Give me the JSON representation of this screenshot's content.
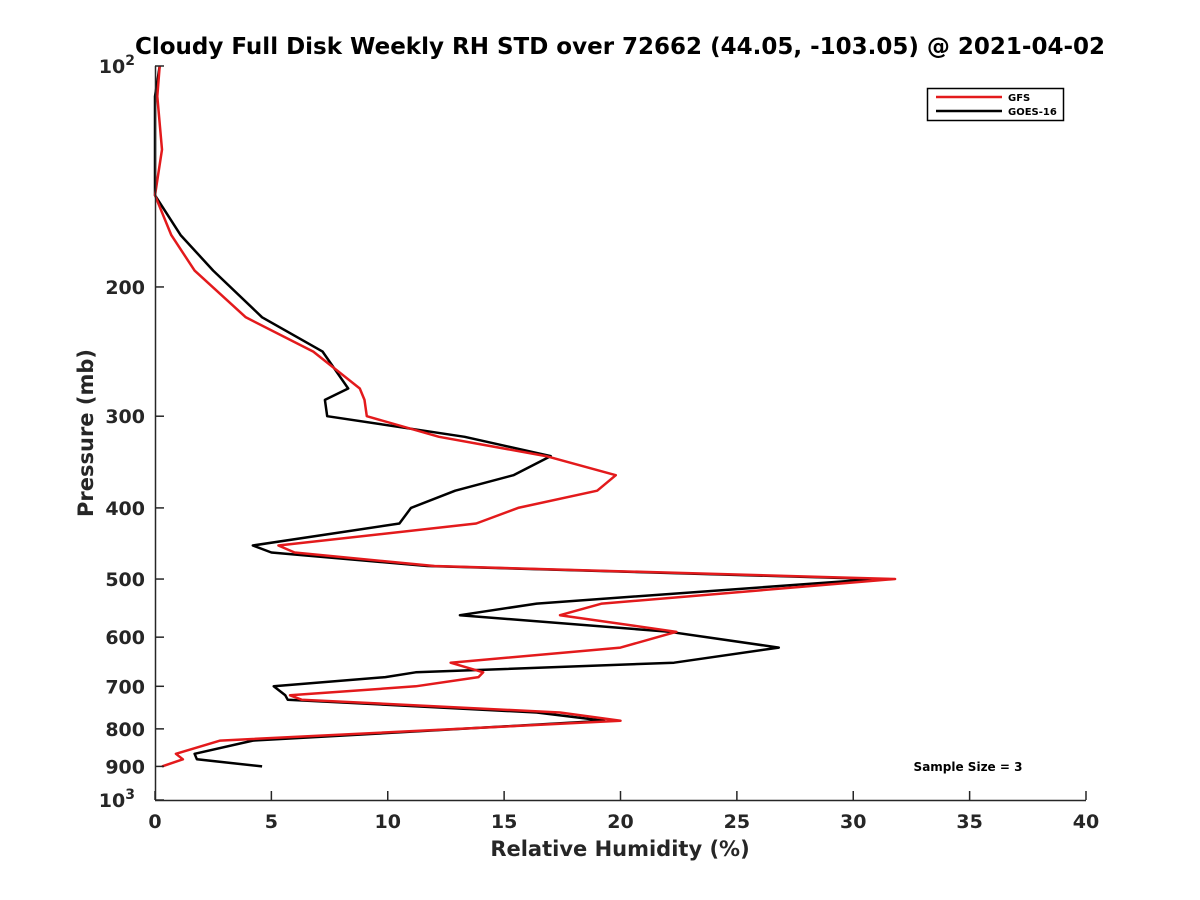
{
  "chart_data": {
    "type": "line",
    "title": "Cloudy Full Disk Weekly RH STD over 72662 (44.05, -103.05) @ 2021-04-02",
    "xlabel": "Relative Humidity (%)",
    "ylabel": "Pressure (mb)",
    "xlim": [
      0,
      40
    ],
    "ylim": [
      100,
      1000
    ],
    "y_scale": "log",
    "y_reversed": true,
    "x_ticks": [
      "0",
      "5",
      "10",
      "15",
      "20",
      "25",
      "30",
      "35",
      "40"
    ],
    "y_ticks": [
      {
        "value": 100,
        "base": "10",
        "exp": "2"
      },
      {
        "value": 200,
        "label": "200"
      },
      {
        "value": 300,
        "label": "300"
      },
      {
        "value": 400,
        "label": "400"
      },
      {
        "value": 500,
        "label": "500"
      },
      {
        "value": 600,
        "label": "600"
      },
      {
        "value": 700,
        "label": "700"
      },
      {
        "value": 800,
        "label": "800"
      },
      {
        "value": 900,
        "label": "900"
      },
      {
        "value": 1000,
        "base": "10",
        "exp": "3"
      }
    ],
    "grid": false,
    "legend_position": "top-right",
    "annotation": "Sample Size = 3",
    "series": [
      {
        "name": "GFS",
        "color": "#e31a1c",
        "x": [
          0.2,
          0.1,
          0.3,
          0.0,
          0.7,
          1.7,
          3.9,
          6.8,
          8.8,
          9.0,
          9.1,
          12.2,
          16.8,
          19.8,
          19.0,
          15.6,
          13.8,
          5.3,
          6.0,
          12.0,
          31.8,
          19.2,
          17.4,
          22.4,
          20.0,
          12.7,
          14.1,
          13.9,
          11.2,
          5.8,
          6.3,
          17.4,
          20.0,
          2.8,
          0.9,
          1.2,
          0.3
        ],
        "y": [
          100,
          110,
          130,
          150,
          170,
          190,
          220,
          245,
          275,
          285,
          300,
          320,
          340,
          361,
          379,
          400,
          420,
          450,
          460,
          480,
          500,
          540,
          560,
          590,
          620,
          650,
          670,
          680,
          700,
          720,
          730,
          760,
          780,
          830,
          865,
          880,
          900
        ]
      },
      {
        "name": "GOES-16",
        "color": "#000000",
        "x": [
          0.2,
          0.0,
          0.0,
          0.0,
          1.1,
          2.5,
          4.6,
          7.2,
          8.3,
          7.3,
          7.4,
          13.3,
          17.0,
          15.4,
          12.9,
          11.0,
          10.5,
          4.2,
          5.0,
          11.7,
          31.0,
          16.4,
          13.1,
          22.1,
          26.8,
          22.3,
          11.2,
          9.9,
          5.1,
          5.6,
          5.7,
          16.4,
          19.3,
          4.2,
          1.7,
          1.8,
          4.6
        ],
        "y": [
          100,
          110,
          130,
          150,
          170,
          190,
          220,
          245,
          275,
          285,
          300,
          320,
          340,
          361,
          379,
          400,
          420,
          450,
          460,
          480,
          500,
          540,
          560,
          590,
          620,
          650,
          670,
          680,
          700,
          720,
          730,
          760,
          780,
          830,
          865,
          880,
          900
        ]
      }
    ]
  }
}
